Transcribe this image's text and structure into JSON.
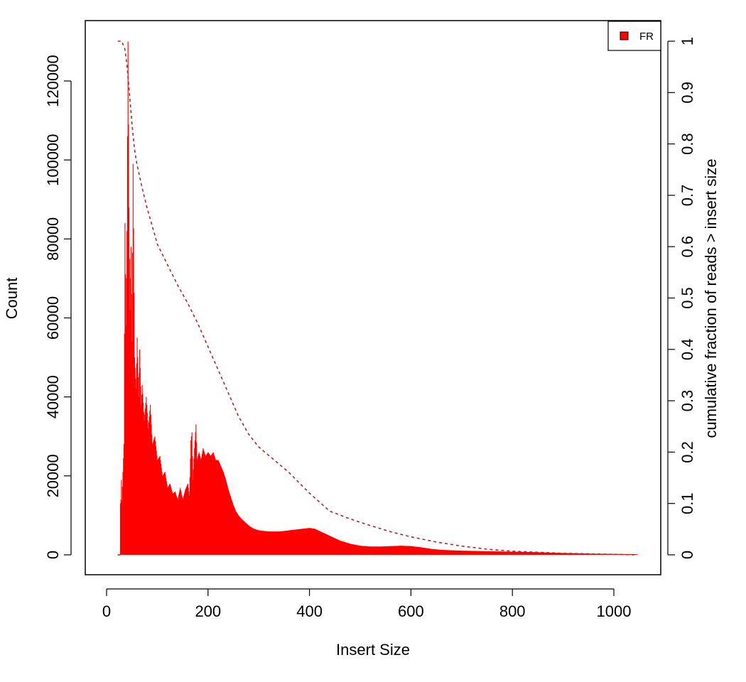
{
  "chart_data": {
    "type": "bar",
    "title": "",
    "xlabel": "Insert Size",
    "ylabel": "Count",
    "ylabel_right": "cumulative fraction of reads > insert size",
    "xlim": [
      0,
      1050
    ],
    "ylim": [
      0,
      130000
    ],
    "ylim_right": [
      0,
      1
    ],
    "x_ticks": [
      0,
      200,
      400,
      600,
      800,
      1000
    ],
    "y_ticks": [
      0,
      20000,
      40000,
      60000,
      80000,
      100000,
      120000
    ],
    "y_ticks_right": [
      0,
      0.1,
      0.2,
      0.3,
      0.4,
      0.5,
      0.6,
      0.7,
      0.8,
      0.9,
      1
    ],
    "grid": false,
    "legend": {
      "position": "top-right",
      "entries": [
        {
          "label": "FR",
          "color": "#ff0000"
        }
      ]
    },
    "histogram": {
      "name": "FR",
      "color": "#ff0000",
      "profile": [
        [
          26,
          0
        ],
        [
          27,
          13000
        ],
        [
          28,
          14000
        ],
        [
          29,
          19000
        ],
        [
          30,
          13500
        ],
        [
          32,
          21000
        ],
        [
          34,
          28000
        ],
        [
          36,
          84000
        ],
        [
          38,
          58000
        ],
        [
          40,
          82000
        ],
        [
          42,
          130000
        ],
        [
          44,
          88000
        ],
        [
          46,
          62000
        ],
        [
          48,
          78000
        ],
        [
          50,
          54000
        ],
        [
          52,
          99000
        ],
        [
          55,
          50000
        ],
        [
          58,
          42000
        ],
        [
          60,
          55000
        ],
        [
          63,
          40000
        ],
        [
          65,
          52000
        ],
        [
          68,
          38000
        ],
        [
          70,
          43000
        ],
        [
          74,
          34000
        ],
        [
          78,
          40000
        ],
        [
          82,
          32000
        ],
        [
          86,
          38000
        ],
        [
          90,
          28000
        ],
        [
          95,
          30000
        ],
        [
          100,
          24000
        ],
        [
          105,
          25000
        ],
        [
          110,
          20000
        ],
        [
          115,
          21000
        ],
        [
          120,
          17000
        ],
        [
          125,
          18000
        ],
        [
          130,
          15500
        ],
        [
          135,
          16000
        ],
        [
          140,
          14000
        ],
        [
          145,
          17000
        ],
        [
          150,
          14000
        ],
        [
          155,
          16500
        ],
        [
          160,
          18000
        ],
        [
          163,
          15000
        ],
        [
          166,
          29000
        ],
        [
          168,
          31000
        ],
        [
          170,
          19000
        ],
        [
          173,
          27000
        ],
        [
          176,
          33000
        ],
        [
          178,
          24000
        ],
        [
          182,
          26000
        ],
        [
          186,
          24000
        ],
        [
          190,
          27000
        ],
        [
          195,
          25000
        ],
        [
          200,
          26000
        ],
        [
          205,
          25000
        ],
        [
          210,
          26000
        ],
        [
          215,
          24000
        ],
        [
          220,
          24000
        ],
        [
          225,
          22500
        ],
        [
          230,
          21000
        ],
        [
          235,
          19000
        ],
        [
          240,
          16500
        ],
        [
          245,
          14500
        ],
        [
          250,
          12500
        ],
        [
          255,
          11000
        ],
        [
          260,
          10000
        ],
        [
          265,
          9200
        ],
        [
          270,
          8600
        ],
        [
          280,
          7400
        ],
        [
          290,
          6600
        ],
        [
          300,
          6200
        ],
        [
          320,
          5900
        ],
        [
          340,
          5900
        ],
        [
          360,
          6200
        ],
        [
          380,
          6500
        ],
        [
          400,
          6800
        ],
        [
          410,
          6600
        ],
        [
          420,
          6000
        ],
        [
          440,
          4800
        ],
        [
          460,
          3600
        ],
        [
          480,
          2800
        ],
        [
          500,
          2300
        ],
        [
          520,
          2100
        ],
        [
          540,
          2100
        ],
        [
          560,
          2200
        ],
        [
          580,
          2300
        ],
        [
          600,
          2200
        ],
        [
          620,
          1900
        ],
        [
          640,
          1500
        ],
        [
          660,
          1250
        ],
        [
          700,
          1050
        ],
        [
          750,
          900
        ],
        [
          800,
          800
        ],
        [
          850,
          650
        ],
        [
          900,
          450
        ],
        [
          950,
          300
        ],
        [
          1000,
          220
        ],
        [
          1046,
          150
        ]
      ]
    },
    "cumulative": {
      "color": "#a52a2a",
      "style": "dashed",
      "points": [
        [
          22,
          1.0
        ],
        [
          30,
          1.0
        ],
        [
          36,
          0.985
        ],
        [
          40,
          0.955
        ],
        [
          45,
          0.9
        ],
        [
          50,
          0.84
        ],
        [
          55,
          0.79
        ],
        [
          60,
          0.76
        ],
        [
          70,
          0.715
        ],
        [
          80,
          0.675
        ],
        [
          90,
          0.64
        ],
        [
          100,
          0.605
        ],
        [
          120,
          0.565
        ],
        [
          140,
          0.525
        ],
        [
          160,
          0.49
        ],
        [
          170,
          0.47
        ],
        [
          180,
          0.45
        ],
        [
          200,
          0.405
        ],
        [
          220,
          0.36
        ],
        [
          240,
          0.315
        ],
        [
          260,
          0.27
        ],
        [
          280,
          0.235
        ],
        [
          300,
          0.21
        ],
        [
          330,
          0.185
        ],
        [
          360,
          0.16
        ],
        [
          400,
          0.12
        ],
        [
          440,
          0.085
        ],
        [
          480,
          0.07
        ],
        [
          520,
          0.057
        ],
        [
          560,
          0.045
        ],
        [
          600,
          0.035
        ],
        [
          650,
          0.025
        ],
        [
          700,
          0.017
        ],
        [
          750,
          0.011
        ],
        [
          800,
          0.007
        ],
        [
          900,
          0.003
        ],
        [
          1000,
          0.001
        ],
        [
          1046,
          0.0
        ]
      ]
    }
  }
}
